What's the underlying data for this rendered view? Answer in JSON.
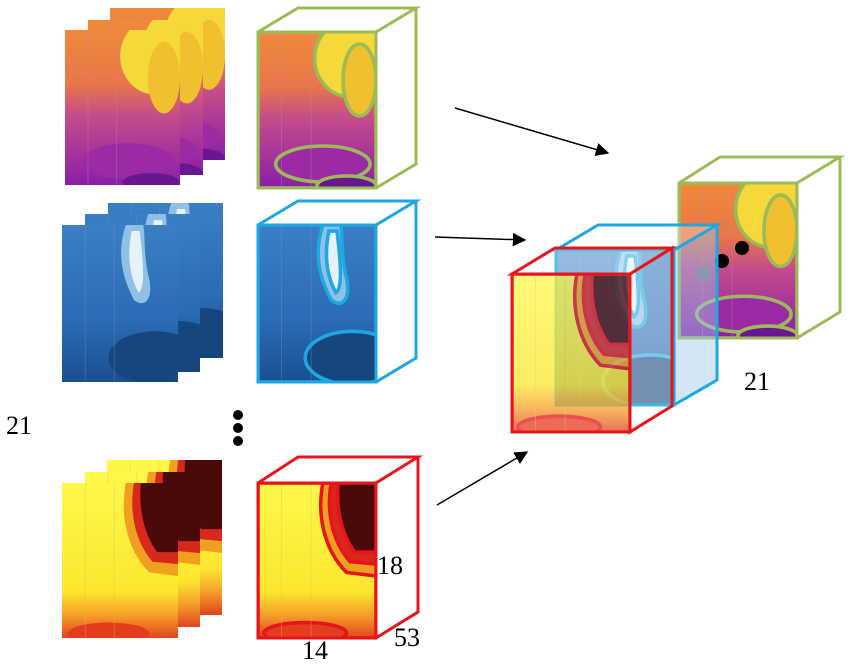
{
  "labels": {
    "left_count": "21",
    "stack_count": "21",
    "height": "18",
    "width": "14",
    "depth": "53"
  }
}
